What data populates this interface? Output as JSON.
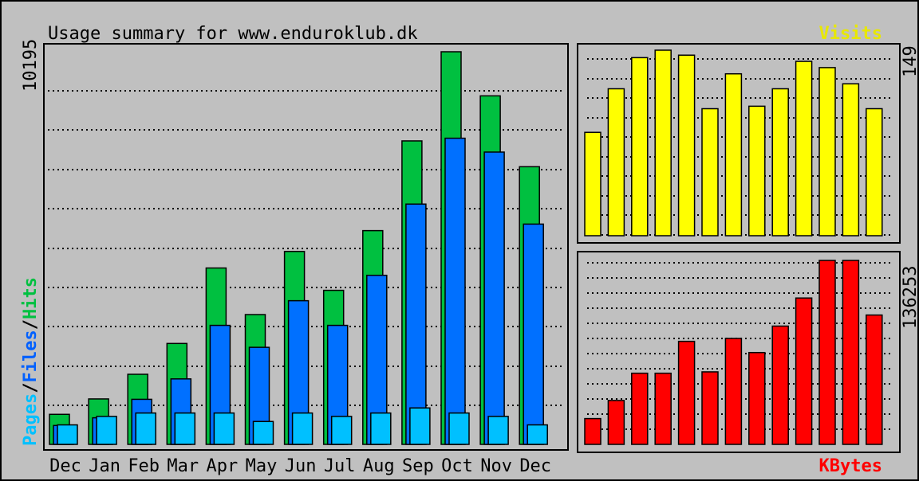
{
  "title": "Usage summary for www.enduroklub.dk",
  "legend": {
    "pages": "Pages",
    "files": "Files",
    "hits": "Hits",
    "separator": "/",
    "visits": "Visits",
    "kbytes": "KBytes"
  },
  "colors": {
    "background": "#c0c0c0",
    "hits": "#00c040",
    "files": "#0070ff",
    "pages": "#00c0ff",
    "visits": "#ffff00",
    "kbytes": "#ff0000",
    "legend_visits": "#e8e800"
  },
  "chart_data": [
    {
      "type": "bar",
      "title": "Usage summary for www.enduroklub.dk",
      "categories": [
        "Dec",
        "Jan",
        "Feb",
        "Mar",
        "Apr",
        "May",
        "Jun",
        "Jul",
        "Aug",
        "Sep",
        "Oct",
        "Nov",
        "Dec"
      ],
      "ymax_label": "10195",
      "ylim": [
        0,
        10195
      ],
      "grid": true,
      "series": [
        {
          "name": "Hits",
          "values": [
            780,
            1180,
            1820,
            2620,
            4580,
            3370,
            5010,
            4000,
            5550,
            7880,
            10195,
            9050,
            7210
          ]
        },
        {
          "name": "Files",
          "values": [
            490,
            690,
            1170,
            1700,
            3090,
            2520,
            3730,
            3090,
            4390,
            6240,
            7950,
            7590,
            5720
          ]
        },
        {
          "name": "Pages",
          "values": [
            230,
            330,
            370,
            370,
            370,
            270,
            370,
            330,
            370,
            430,
            370,
            330,
            230
          ]
        }
      ]
    },
    {
      "type": "bar",
      "categories": [
        "Dec",
        "Jan",
        "Feb",
        "Mar",
        "Apr",
        "May",
        "Jun",
        "Jul",
        "Aug",
        "Sep",
        "Oct",
        "Nov",
        "Dec"
      ],
      "ymax_label": "149",
      "ylim": [
        0,
        149
      ],
      "grid": true,
      "series": [
        {
          "name": "Visits",
          "values": [
            83,
            118,
            143,
            149,
            145,
            102,
            130,
            104,
            118,
            140,
            135,
            122,
            102
          ]
        }
      ]
    },
    {
      "type": "bar",
      "categories": [
        "Dec",
        "Jan",
        "Feb",
        "Mar",
        "Apr",
        "May",
        "Jun",
        "Jul",
        "Aug",
        "Sep",
        "Oct",
        "Nov",
        "Dec"
      ],
      "ymax_label": "136253",
      "ylim": [
        0,
        136253
      ],
      "grid": true,
      "series": [
        {
          "name": "KBytes",
          "values": [
            19100,
            32500,
            52700,
            52700,
            76300,
            53700,
            78500,
            68000,
            87600,
            108400,
            136253,
            136253,
            95800
          ]
        }
      ]
    }
  ]
}
